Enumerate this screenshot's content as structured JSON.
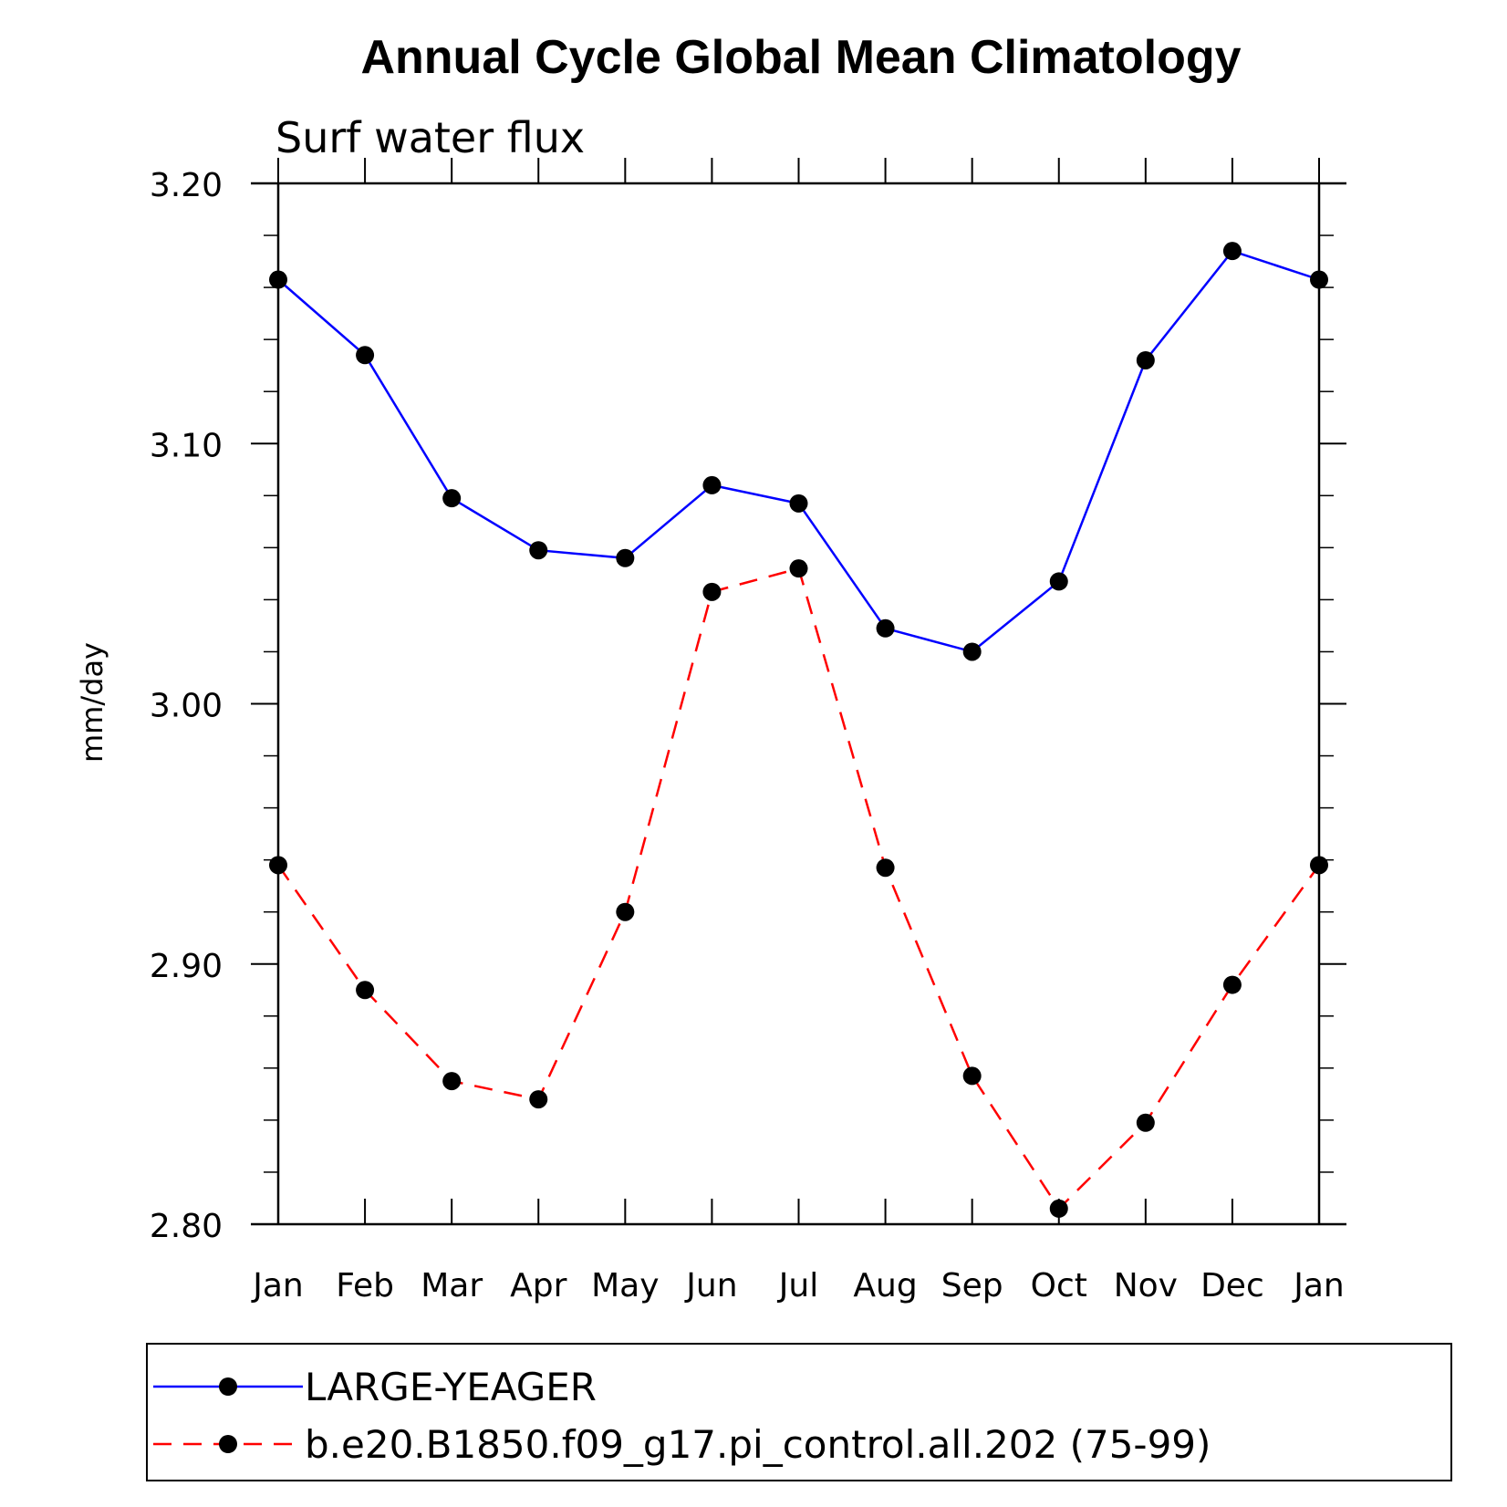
{
  "chart_data": {
    "type": "line",
    "title": "Annual Cycle Global Mean Climatology",
    "subtitle": "Surf water flux",
    "xlabel": "",
    "ylabel": "mm/day",
    "categories": [
      "Jan",
      "Feb",
      "Mar",
      "Apr",
      "May",
      "Jun",
      "Jul",
      "Aug",
      "Sep",
      "Oct",
      "Nov",
      "Dec",
      "Jan"
    ],
    "ylim": [
      2.8,
      3.2
    ],
    "yticks": [
      2.8,
      2.9,
      3.0,
      3.1,
      3.2
    ],
    "ytick_labels": [
      "2.80",
      "2.90",
      "3.00",
      "3.10",
      "3.20"
    ],
    "grid": false,
    "legend_position": "bottom",
    "series": [
      {
        "name": "LARGE-YEAGER",
        "color": "#0000ff",
        "line_style": "solid",
        "marker": "circle",
        "values": [
          3.163,
          3.134,
          3.079,
          3.059,
          3.056,
          3.084,
          3.077,
          3.029,
          3.02,
          3.047,
          3.132,
          3.174,
          3.163
        ]
      },
      {
        "name": "b.e20.B1850.f09_g17.pi_control.all.202 (75-99)",
        "color": "#ff0000",
        "line_style": "dashed",
        "marker": "circle",
        "values": [
          2.938,
          2.89,
          2.855,
          2.848,
          2.92,
          3.043,
          3.052,
          2.937,
          2.857,
          2.806,
          2.839,
          2.892,
          2.938
        ]
      }
    ]
  }
}
